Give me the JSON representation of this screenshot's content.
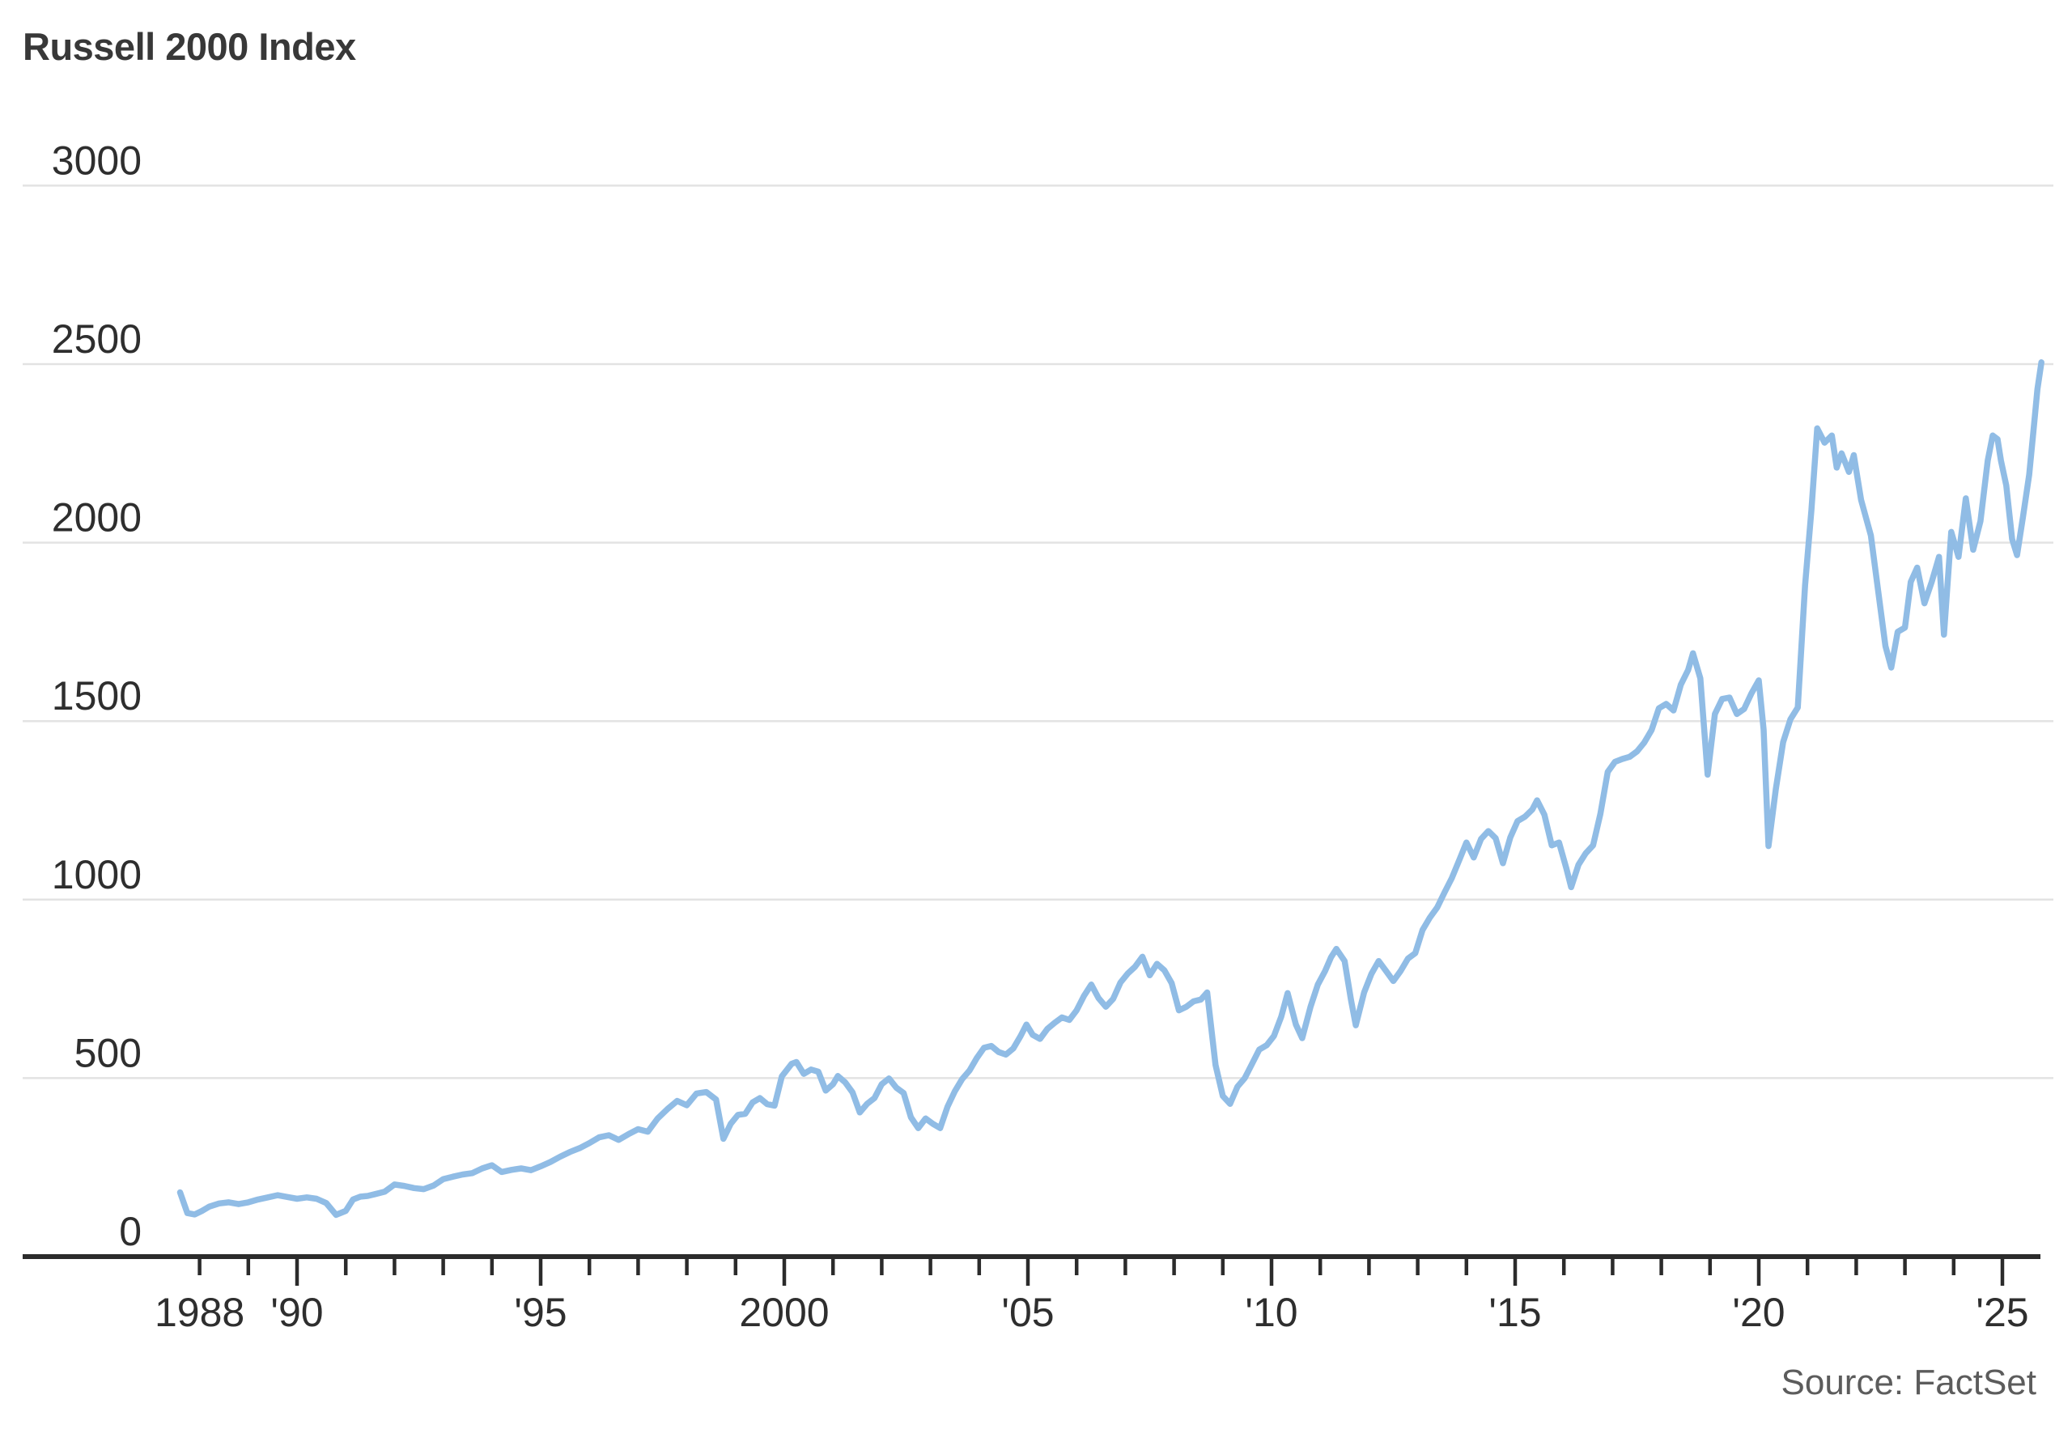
{
  "title": "Russell 2000 Index",
  "source": "Source: FactSet",
  "colors": {
    "line": "#90bce5",
    "grid": "#e3e3e3",
    "axis": "#2b2b2b",
    "tick": "#2b2b2b",
    "label_text": "#2e2e2e",
    "title_text": "#383838",
    "source_text": "#5c5c5c",
    "background": "#ffffff"
  },
  "chart_data": {
    "type": "line",
    "title": "Russell 2000 Index",
    "xlabel": "",
    "ylabel": "",
    "ylim": [
      0,
      3000
    ],
    "xlim": [
      1987.5,
      2026.4
    ],
    "grid": "horizontal",
    "legend_position": "none",
    "y_ticks": [
      0,
      500,
      1000,
      1500,
      2000,
      2500,
      3000
    ],
    "x_ticks": {
      "year_start": 1988,
      "year_end": 2025,
      "major_every": 5,
      "labels": {
        "1988": "1988",
        "1990": "'90",
        "1995": "'95",
        "2000": "2000",
        "2005": "'05",
        "2010": "'10",
        "2015": "'15",
        "2020": "'20",
        "2025": "'25"
      }
    },
    "series": [
      {
        "name": "Russell 2000 Index",
        "points": [
          [
            1987.6,
            180
          ],
          [
            1987.75,
            122
          ],
          [
            1987.9,
            118
          ],
          [
            1988.05,
            128
          ],
          [
            1988.2,
            140
          ],
          [
            1988.4,
            149
          ],
          [
            1988.6,
            152
          ],
          [
            1988.8,
            147
          ],
          [
            1989.0,
            152
          ],
          [
            1989.2,
            160
          ],
          [
            1989.4,
            166
          ],
          [
            1989.6,
            172
          ],
          [
            1989.8,
            167
          ],
          [
            1990.0,
            162
          ],
          [
            1990.2,
            166
          ],
          [
            1990.4,
            162
          ],
          [
            1990.6,
            150
          ],
          [
            1990.8,
            117
          ],
          [
            1991.0,
            128
          ],
          [
            1991.15,
            160
          ],
          [
            1991.3,
            168
          ],
          [
            1991.45,
            170
          ],
          [
            1991.6,
            175
          ],
          [
            1991.8,
            182
          ],
          [
            1992.0,
            202
          ],
          [
            1992.2,
            198
          ],
          [
            1992.4,
            192
          ],
          [
            1992.6,
            189
          ],
          [
            1992.8,
            199
          ],
          [
            1993.0,
            217
          ],
          [
            1993.2,
            224
          ],
          [
            1993.4,
            230
          ],
          [
            1993.6,
            234
          ],
          [
            1993.8,
            247
          ],
          [
            1994.0,
            256
          ],
          [
            1994.2,
            237
          ],
          [
            1994.4,
            243
          ],
          [
            1994.6,
            247
          ],
          [
            1994.8,
            242
          ],
          [
            1995.0,
            253
          ],
          [
            1995.2,
            265
          ],
          [
            1995.4,
            280
          ],
          [
            1995.6,
            293
          ],
          [
            1995.8,
            304
          ],
          [
            1996.0,
            318
          ],
          [
            1996.2,
            334
          ],
          [
            1996.4,
            340
          ],
          [
            1996.6,
            327
          ],
          [
            1996.8,
            343
          ],
          [
            1997.0,
            357
          ],
          [
            1997.2,
            350
          ],
          [
            1997.4,
            387
          ],
          [
            1997.6,
            413
          ],
          [
            1997.8,
            436
          ],
          [
            1998.0,
            424
          ],
          [
            1998.2,
            457
          ],
          [
            1998.4,
            461
          ],
          [
            1998.6,
            440
          ],
          [
            1998.75,
            330
          ],
          [
            1998.9,
            372
          ],
          [
            1999.05,
            397
          ],
          [
            1999.2,
            400
          ],
          [
            1999.35,
            432
          ],
          [
            1999.5,
            444
          ],
          [
            1999.65,
            427
          ],
          [
            1999.8,
            423
          ],
          [
            1999.95,
            505
          ],
          [
            2000.15,
            540
          ],
          [
            2000.25,
            545
          ],
          [
            2000.4,
            512
          ],
          [
            2000.55,
            524
          ],
          [
            2000.7,
            518
          ],
          [
            2000.85,
            465
          ],
          [
            2001.0,
            483
          ],
          [
            2001.1,
            506
          ],
          [
            2001.25,
            488
          ],
          [
            2001.4,
            460
          ],
          [
            2001.55,
            404
          ],
          [
            2001.7,
            428
          ],
          [
            2001.85,
            444
          ],
          [
            2002.0,
            483
          ],
          [
            2002.15,
            499
          ],
          [
            2002.3,
            473
          ],
          [
            2002.45,
            458
          ],
          [
            2002.6,
            390
          ],
          [
            2002.75,
            360
          ],
          [
            2002.9,
            387
          ],
          [
            2003.05,
            372
          ],
          [
            2003.2,
            360
          ],
          [
            2003.35,
            420
          ],
          [
            2003.5,
            463
          ],
          [
            2003.65,
            497
          ],
          [
            2003.8,
            521
          ],
          [
            2003.95,
            556
          ],
          [
            2004.1,
            585
          ],
          [
            2004.25,
            590
          ],
          [
            2004.4,
            573
          ],
          [
            2004.55,
            566
          ],
          [
            2004.7,
            583
          ],
          [
            2004.85,
            618
          ],
          [
            2004.97,
            650
          ],
          [
            2005.1,
            621
          ],
          [
            2005.25,
            610
          ],
          [
            2005.4,
            638
          ],
          [
            2005.55,
            655
          ],
          [
            2005.7,
            670
          ],
          [
            2005.85,
            663
          ],
          [
            2006.0,
            690
          ],
          [
            2006.15,
            730
          ],
          [
            2006.3,
            762
          ],
          [
            2006.45,
            724
          ],
          [
            2006.6,
            700
          ],
          [
            2006.75,
            722
          ],
          [
            2006.9,
            768
          ],
          [
            2007.05,
            793
          ],
          [
            2007.2,
            812
          ],
          [
            2007.35,
            840
          ],
          [
            2007.5,
            788
          ],
          [
            2007.65,
            820
          ],
          [
            2007.8,
            802
          ],
          [
            2007.95,
            766
          ],
          [
            2008.1,
            690
          ],
          [
            2008.25,
            700
          ],
          [
            2008.4,
            715
          ],
          [
            2008.55,
            720
          ],
          [
            2008.68,
            740
          ],
          [
            2008.85,
            537
          ],
          [
            2009.0,
            450
          ],
          [
            2009.15,
            428
          ],
          [
            2009.3,
            476
          ],
          [
            2009.45,
            500
          ],
          [
            2009.6,
            540
          ],
          [
            2009.75,
            580
          ],
          [
            2009.9,
            592
          ],
          [
            2010.05,
            618
          ],
          [
            2010.2,
            672
          ],
          [
            2010.33,
            738
          ],
          [
            2010.5,
            650
          ],
          [
            2010.63,
            612
          ],
          [
            2010.8,
            700
          ],
          [
            2010.95,
            762
          ],
          [
            2011.1,
            800
          ],
          [
            2011.22,
            838
          ],
          [
            2011.33,
            862
          ],
          [
            2011.5,
            828
          ],
          [
            2011.63,
            720
          ],
          [
            2011.73,
            648
          ],
          [
            2011.9,
            740
          ],
          [
            2012.05,
            792
          ],
          [
            2012.2,
            828
          ],
          [
            2012.35,
            800
          ],
          [
            2012.5,
            772
          ],
          [
            2012.65,
            800
          ],
          [
            2012.8,
            835
          ],
          [
            2012.95,
            850
          ],
          [
            2013.1,
            915
          ],
          [
            2013.25,
            950
          ],
          [
            2013.4,
            978
          ],
          [
            2013.55,
            1020
          ],
          [
            2013.7,
            1060
          ],
          [
            2013.85,
            1110
          ],
          [
            2014.0,
            1160
          ],
          [
            2014.15,
            1118
          ],
          [
            2014.3,
            1170
          ],
          [
            2014.45,
            1192
          ],
          [
            2014.6,
            1172
          ],
          [
            2014.75,
            1102
          ],
          [
            2014.9,
            1174
          ],
          [
            2015.05,
            1220
          ],
          [
            2015.2,
            1232
          ],
          [
            2015.35,
            1252
          ],
          [
            2015.45,
            1278
          ],
          [
            2015.6,
            1238
          ],
          [
            2015.75,
            1152
          ],
          [
            2015.9,
            1160
          ],
          [
            2016.05,
            1088
          ],
          [
            2016.15,
            1035
          ],
          [
            2016.3,
            1098
          ],
          [
            2016.45,
            1130
          ],
          [
            2016.6,
            1152
          ],
          [
            2016.75,
            1240
          ],
          [
            2016.9,
            1358
          ],
          [
            2017.05,
            1386
          ],
          [
            2017.2,
            1394
          ],
          [
            2017.35,
            1400
          ],
          [
            2017.5,
            1415
          ],
          [
            2017.65,
            1440
          ],
          [
            2017.8,
            1475
          ],
          [
            2017.95,
            1536
          ],
          [
            2018.1,
            1548
          ],
          [
            2018.25,
            1530
          ],
          [
            2018.4,
            1602
          ],
          [
            2018.55,
            1643
          ],
          [
            2018.65,
            1690
          ],
          [
            2018.8,
            1620
          ],
          [
            2018.95,
            1350
          ],
          [
            2019.1,
            1520
          ],
          [
            2019.25,
            1562
          ],
          [
            2019.4,
            1566
          ],
          [
            2019.55,
            1520
          ],
          [
            2019.7,
            1534
          ],
          [
            2019.85,
            1578
          ],
          [
            2020.0,
            1614
          ],
          [
            2020.1,
            1476
          ],
          [
            2020.2,
            1150
          ],
          [
            2020.35,
            1310
          ],
          [
            2020.5,
            1441
          ],
          [
            2020.65,
            1505
          ],
          [
            2020.8,
            1538
          ],
          [
            2020.95,
            1880
          ],
          [
            2021.08,
            2090
          ],
          [
            2021.2,
            2320
          ],
          [
            2021.35,
            2280
          ],
          [
            2021.5,
            2300
          ],
          [
            2021.6,
            2210
          ],
          [
            2021.7,
            2250
          ],
          [
            2021.85,
            2198
          ],
          [
            2021.95,
            2245
          ],
          [
            2022.1,
            2120
          ],
          [
            2022.3,
            2020
          ],
          [
            2022.45,
            1865
          ],
          [
            2022.6,
            1710
          ],
          [
            2022.72,
            1650
          ],
          [
            2022.85,
            1750
          ],
          [
            2023.0,
            1762
          ],
          [
            2023.12,
            1890
          ],
          [
            2023.25,
            1930
          ],
          [
            2023.4,
            1830
          ],
          [
            2023.55,
            1890
          ],
          [
            2023.7,
            1960
          ],
          [
            2023.8,
            1742
          ],
          [
            2023.95,
            2030
          ],
          [
            2024.1,
            1960
          ],
          [
            2024.25,
            2124
          ],
          [
            2024.4,
            1980
          ],
          [
            2024.55,
            2060
          ],
          [
            2024.7,
            2230
          ],
          [
            2024.8,
            2300
          ],
          [
            2024.9,
            2290
          ],
          [
            2024.97,
            2230
          ],
          [
            2025.08,
            2160
          ],
          [
            2025.2,
            2010
          ],
          [
            2025.3,
            1965
          ],
          [
            2025.42,
            2070
          ],
          [
            2025.55,
            2190
          ],
          [
            2025.65,
            2330
          ],
          [
            2025.72,
            2430
          ],
          [
            2025.8,
            2505
          ]
        ]
      }
    ]
  }
}
